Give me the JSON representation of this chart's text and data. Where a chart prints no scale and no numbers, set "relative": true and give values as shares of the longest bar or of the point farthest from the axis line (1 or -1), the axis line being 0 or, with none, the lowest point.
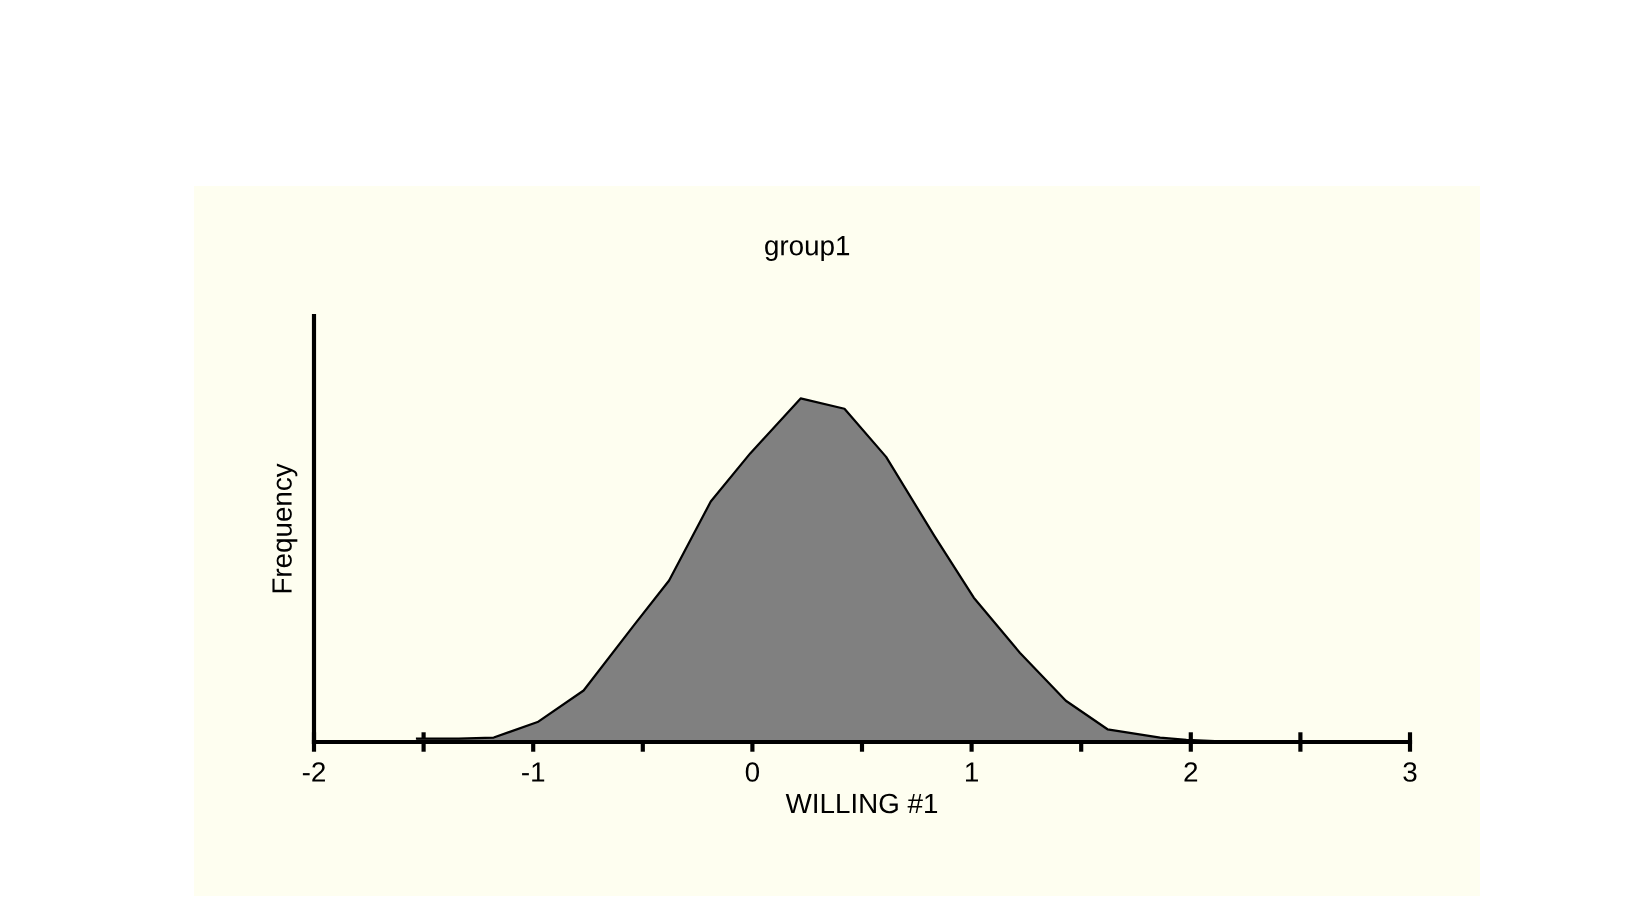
{
  "chart_data": {
    "type": "area",
    "title": "group1",
    "xlabel": "WILLING #1",
    "ylabel": "Frequency",
    "relative": true,
    "color": "#808080",
    "x": [
      -1.53,
      -1.34,
      -1.18,
      -0.98,
      -0.77,
      -0.54,
      -0.38,
      -0.19,
      -0.01,
      0.22,
      0.42,
      0.61,
      0.83,
      1.01,
      1.22,
      1.43,
      1.62,
      1.86,
      1.98,
      2.21
    ],
    "values": [
      0.01,
      0.01,
      0.013,
      0.058,
      0.15,
      0.34,
      0.47,
      0.7,
      0.84,
      1.0,
      0.97,
      0.83,
      0.6,
      0.42,
      0.26,
      0.12,
      0.037,
      0.013,
      0.006,
      0
    ],
    "xlim": [
      -2,
      3
    ],
    "xticks": [
      -2,
      {
        "value": -1.5,
        "label": null
      },
      -1,
      {
        "value": -0.5,
        "label": null
      },
      0,
      {
        "value": 0.5,
        "label": null
      },
      1,
      {
        "value": 1.5,
        "label": null
      },
      2,
      {
        "value": 2.5,
        "label": null
      },
      3
    ],
    "grid": false,
    "legend": false
  }
}
